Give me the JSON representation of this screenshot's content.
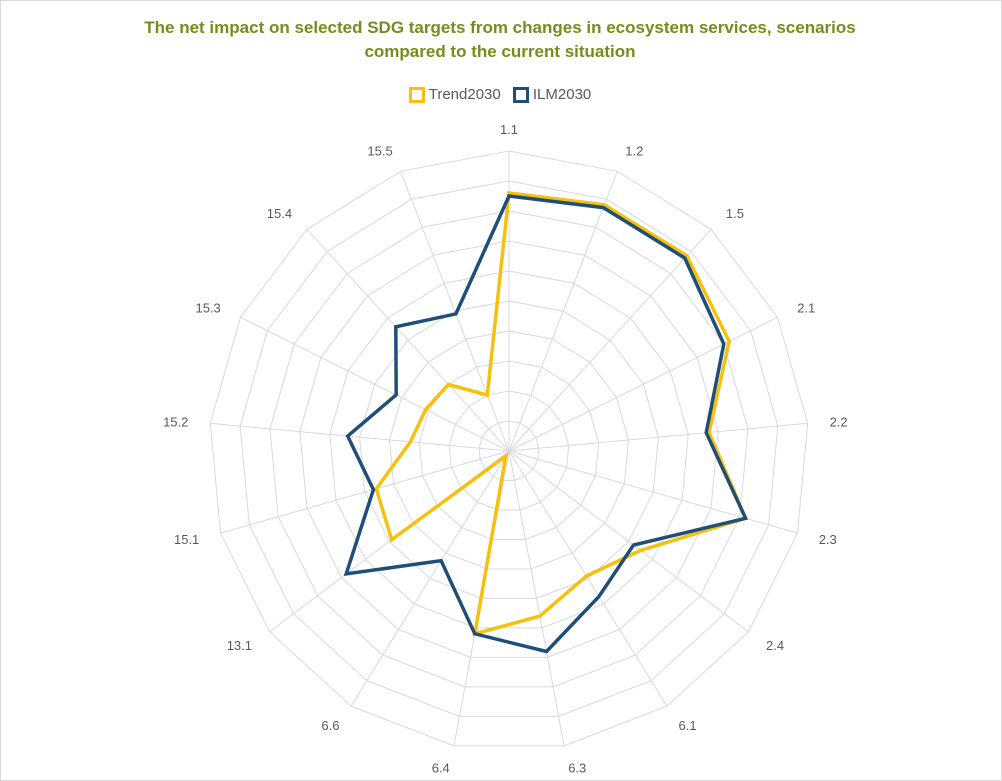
{
  "chart_data": {
    "type": "radar",
    "title": "The net impact on selected SDG targets from changes in ecosystem services, scenarios compared to the current situation",
    "categories": [
      "1.1",
      "1.2",
      "1.5",
      "2.1",
      "2.2",
      "2.3",
      "2.4",
      "6.1",
      "6.3",
      "6.4",
      "6.6",
      "13.1",
      "15.1",
      "15.2",
      "15.3",
      "15.4",
      "15.5"
    ],
    "rlim": [
      0,
      10
    ],
    "grid": true,
    "legend_position": "top",
    "series": [
      {
        "name": "Trend2030",
        "color": "#f5c10e",
        "values": [
          8.6,
          8.8,
          8.8,
          8.2,
          6.7,
          8.2,
          5.5,
          4.9,
          5.6,
          6.2,
          0.2,
          4.9,
          4.6,
          3.3,
          3.1,
          3.0,
          2.0
        ]
      },
      {
        "name": "ILM2030",
        "color": "#1f4e79",
        "values": [
          8.5,
          8.7,
          8.7,
          8.0,
          6.6,
          8.2,
          5.2,
          5.7,
          6.8,
          6.2,
          4.3,
          6.8,
          4.7,
          5.4,
          4.2,
          5.6,
          4.9
        ]
      }
    ]
  }
}
